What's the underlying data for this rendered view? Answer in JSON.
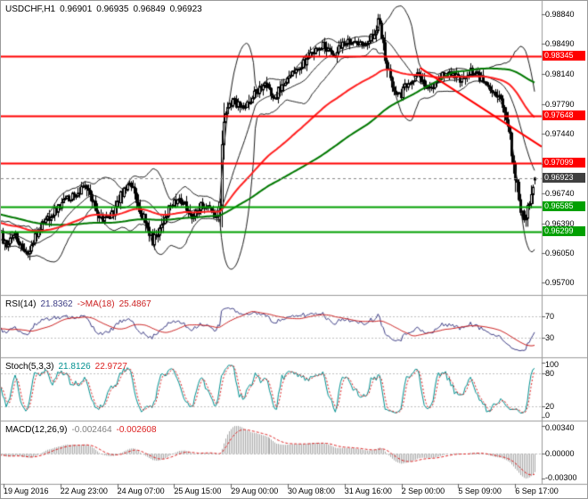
{
  "chart_data": {
    "type": "candlestick",
    "platform_style": "metatrader4",
    "header": {
      "symbol": "USDCHF,H1",
      "open": "0.96901",
      "high": "0.96935",
      "low": "0.96849",
      "close": "0.96923"
    },
    "ohlc_values": [
      0.96901,
      0.96935,
      0.96849,
      0.96923
    ],
    "x_labels": [
      "19 Aug 2016",
      "22 Aug 23:00",
      "24 Aug 07:00",
      "25 Aug 15:00",
      "29 Aug 00:00",
      "30 Aug 08:00",
      "31 Aug 16:00",
      "2 Sep 00:00",
      "5 Sep 09:00",
      "6 Sep 17:00"
    ],
    "main": {
      "price_range": [
        0.9562,
        0.9892
      ],
      "y_ticks": [
        "0.98840",
        "0.98490",
        "0.98140",
        "0.97790",
        "0.97440",
        "0.97090",
        "0.96740",
        "0.96390",
        "0.96050",
        "0.95700"
      ],
      "y_tick_values": [
        0.9884,
        0.9849,
        0.9814,
        0.9779,
        0.9744,
        0.9709,
        0.9674,
        0.9639,
        0.9605,
        0.957
      ],
      "resistance_levels": [
        {
          "label": "0.98345",
          "value": 0.98345
        },
        {
          "label": "0.97648",
          "value": 0.97648
        },
        {
          "label": "0.97099",
          "value": 0.97099
        }
      ],
      "support_levels": [
        {
          "label": "0.96585",
          "value": 0.96585
        },
        {
          "label": "0.96299",
          "value": 0.96299
        }
      ],
      "current_price": {
        "label": "0.96923",
        "value": 0.96923
      },
      "trendline": {
        "x1": 0.775,
        "p1": 0.9821,
        "x2": 1.0,
        "p2": 0.9729
      },
      "bar_count": 300,
      "seed": 11,
      "max_high": 0.98845,
      "min_low": 0.9596,
      "spike": {
        "x": 0.706,
        "high": 0.9884
      },
      "pre_history": {
        "bars": 150,
        "from": 0.9686,
        "to": 0.962
      },
      "close_path": [
        [
          0.0,
          0.9612
        ],
        [
          0.023,
          0.9628
        ],
        [
          0.045,
          0.9602
        ],
        [
          0.074,
          0.964
        ],
        [
          0.12,
          0.9668
        ],
        [
          0.155,
          0.9682
        ],
        [
          0.18,
          0.965
        ],
        [
          0.198,
          0.9642
        ],
        [
          0.225,
          0.9676
        ],
        [
          0.243,
          0.9684
        ],
        [
          0.262,
          0.9648
        ],
        [
          0.281,
          0.9618
        ],
        [
          0.31,
          0.9655
        ],
        [
          0.331,
          0.9668
        ],
        [
          0.355,
          0.9648
        ],
        [
          0.372,
          0.9662
        ],
        [
          0.388,
          0.9656
        ],
        [
          0.402,
          0.9644
        ],
        [
          0.408,
          0.9662
        ],
        [
          0.414,
          0.9768
        ],
        [
          0.43,
          0.9782
        ],
        [
          0.455,
          0.9772
        ],
        [
          0.472,
          0.9792
        ],
        [
          0.49,
          0.9802
        ],
        [
          0.512,
          0.9788
        ],
        [
          0.53,
          0.9804
        ],
        [
          0.555,
          0.9818
        ],
        [
          0.58,
          0.9838
        ],
        [
          0.6,
          0.9848
        ],
        [
          0.625,
          0.9838
        ],
        [
          0.65,
          0.9854
        ],
        [
          0.67,
          0.9846
        ],
        [
          0.695,
          0.9858
        ],
        [
          0.706,
          0.9876
        ],
        [
          0.714,
          0.986
        ],
        [
          0.724,
          0.9818
        ],
        [
          0.738,
          0.9796
        ],
        [
          0.748,
          0.979
        ],
        [
          0.762,
          0.9804
        ],
        [
          0.778,
          0.9814
        ],
        [
          0.792,
          0.98
        ],
        [
          0.806,
          0.9796
        ],
        [
          0.822,
          0.981
        ],
        [
          0.842,
          0.9816
        ],
        [
          0.862,
          0.9806
        ],
        [
          0.877,
          0.9818
        ],
        [
          0.892,
          0.9812
        ],
        [
          0.906,
          0.9804
        ],
        [
          0.922,
          0.9796
        ],
        [
          0.938,
          0.9784
        ],
        [
          0.952,
          0.9742
        ],
        [
          0.963,
          0.9698
        ],
        [
          0.973,
          0.9658
        ],
        [
          0.981,
          0.9644
        ],
        [
          0.989,
          0.9664
        ],
        [
          0.995,
          0.9682
        ],
        [
          1.0,
          0.96923
        ]
      ]
    },
    "indicators": {
      "bollinger": {
        "period": 20,
        "deviation": 2
      },
      "ma_slow_green": {
        "period": 130,
        "type": "sma"
      },
      "ma_slow_red": {
        "period": 80,
        "type": "ema"
      },
      "rsi": {
        "name": "RSI(14)",
        "value": "21.8362",
        "ma_name": "->MA(18)",
        "ma_value": "25.4867",
        "period": 14,
        "ma_period": 18,
        "levels": [
          70,
          30
        ],
        "range": [
          0,
          100
        ],
        "ticks": [
          {
            "label": "70",
            "value": 70
          },
          {
            "label": "30",
            "value": 30
          }
        ]
      },
      "stoch": {
        "name": "Stoch(5,3,3)",
        "k_value": "21.8126",
        "d_value": "22.9727",
        "k_period": 5,
        "d_period": 3,
        "slowing": 3,
        "levels": [
          80,
          20
        ],
        "range": [
          0,
          100
        ],
        "ticks": [
          {
            "label": "100",
            "value": 100
          },
          {
            "label": "80",
            "value": 80
          },
          {
            "label": "20",
            "value": 20
          },
          {
            "label": "0",
            "value": 0
          }
        ]
      },
      "macd": {
        "name": "MACD(12,26,9)",
        "value": "-0.002464",
        "signal_value": "-0.002608",
        "fast": 12,
        "slow": 26,
        "signal": 9,
        "range": [
          -0.0031,
          0.0034
        ],
        "ticks": [
          {
            "label": "0.00340",
            "value": 0.0034
          },
          {
            "label": "0.00000",
            "value": 0
          },
          {
            "label": "-0.00300",
            "value": -0.003
          }
        ]
      }
    }
  },
  "colors": {
    "background": "#ffffff",
    "border": "#9a9a9a",
    "axis_text": "#000000",
    "candle_outline": "#000000",
    "bull_fill": "#ffffff",
    "bear_fill": "#000000",
    "bollinger": "#1c1c1c",
    "ma_green": "#007800",
    "ma_red": "#ff2020",
    "trendline": "#ff0000",
    "resistance": "#ff0000",
    "support": "#00a000",
    "current_price_bg": "#404040",
    "level_guide": "#c0c0c0",
    "rsi_line": "#3d3d85",
    "rsi_ma": "#cc2020",
    "stoch_k": "#009090",
    "stoch_d": "#dd2222",
    "macd_hist": "#a8a8a8",
    "macd_signal": "#dd2222"
  }
}
